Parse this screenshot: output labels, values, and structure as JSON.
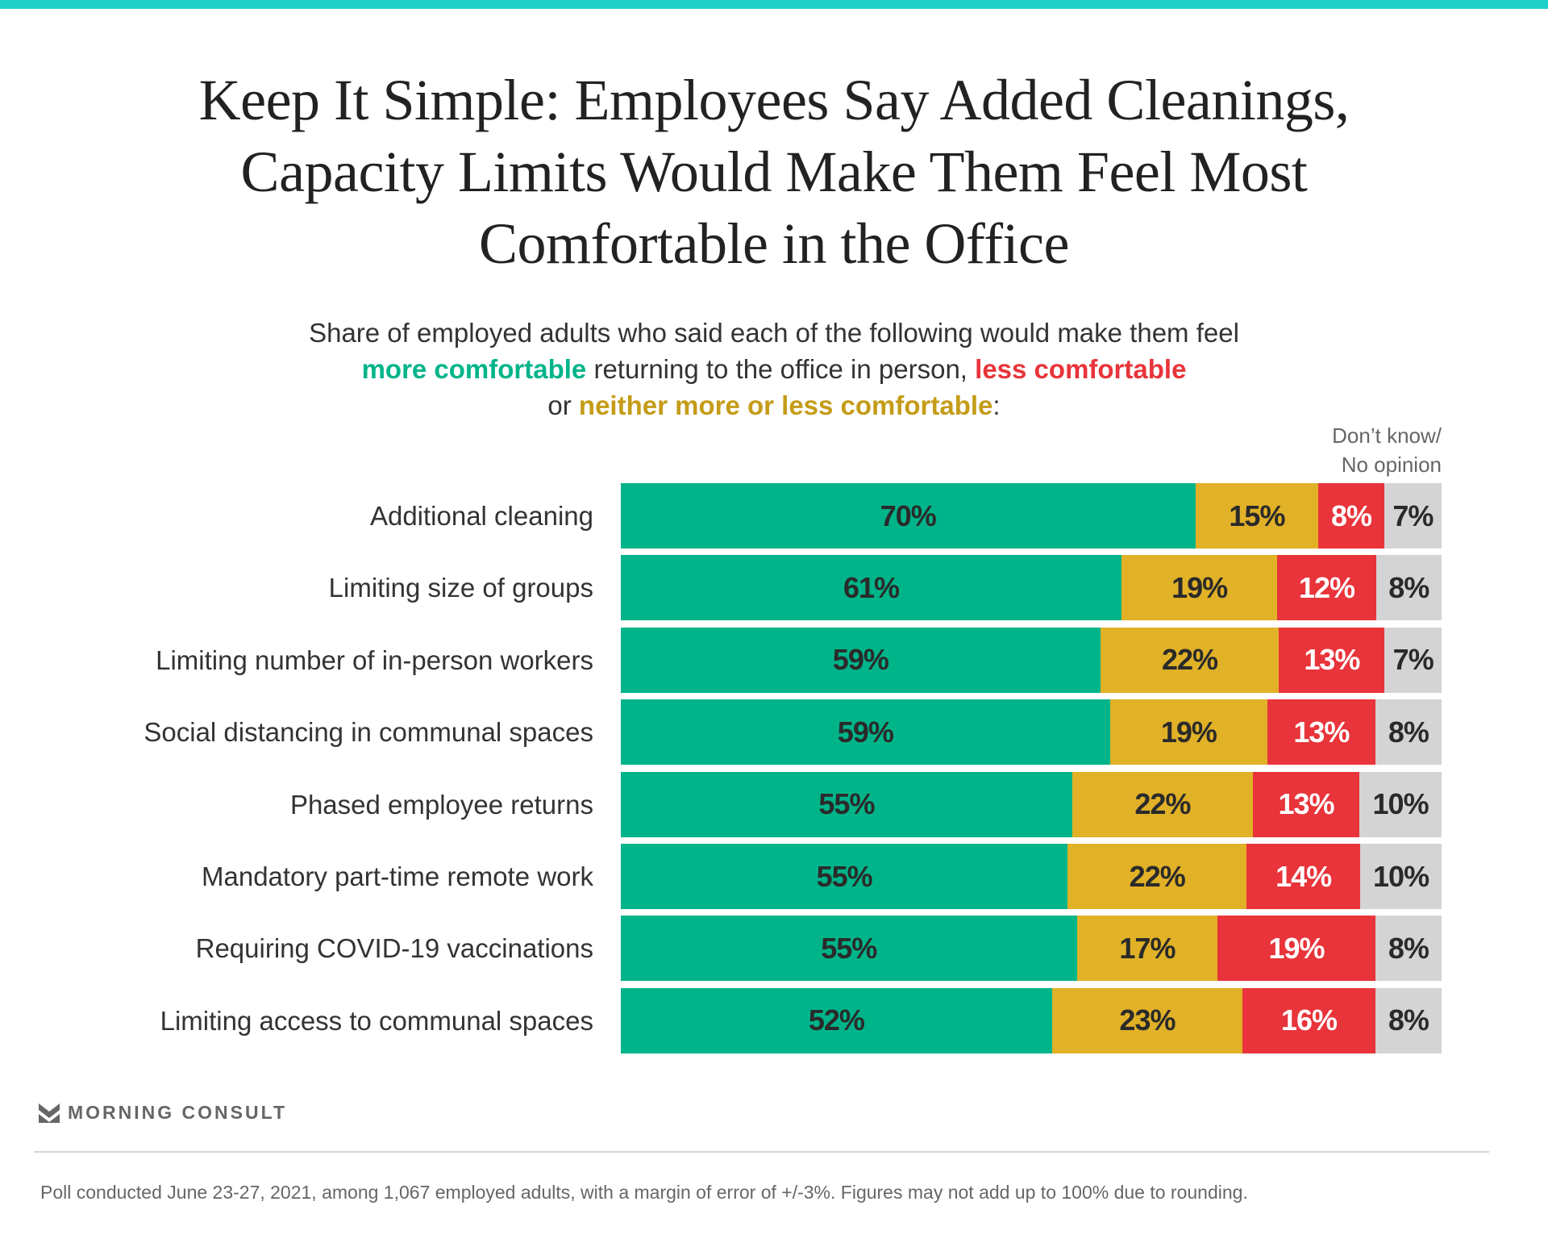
{
  "title_lines": [
    "Keep It Simple: Employees Say Added Cleanings,",
    "Capacity Limits Would Make Them Feel Most",
    "Comfortable in the Office"
  ],
  "subtitle": {
    "line1": "Share of employed adults who said each of the following would make them feel",
    "more": "more comfortable",
    "mid": " returning to the office in person, ",
    "less": "less comfortable",
    "or": "or ",
    "neither": "neither more or less comfortable",
    "end": ":"
  },
  "dont_know_header": [
    "Don’t know/",
    "No opinion"
  ],
  "chart_data": {
    "type": "bar",
    "orientation": "horizontal-stacked-100",
    "categories": [
      "Additional cleaning",
      "Limiting size of groups",
      "Limiting number of in-person workers",
      "Social distancing in communal spaces",
      "Phased employee returns",
      "Mandatory part-time remote work",
      "Requiring COVID-19 vaccinations",
      "Limiting access to communal spaces"
    ],
    "series": [
      {
        "name": "More comfortable",
        "color": "#00b48a",
        "text_color": "#2a2a2a",
        "values": [
          70,
          61,
          59,
          59,
          55,
          55,
          55,
          52
        ]
      },
      {
        "name": "Neither more or less comfortable",
        "color": "#e1b127",
        "text_color": "#2a2a2a",
        "values": [
          15,
          19,
          22,
          19,
          22,
          22,
          17,
          23
        ]
      },
      {
        "name": "Less comfortable",
        "color": "#e8343a",
        "text_color": "#ffffff",
        "values": [
          8,
          12,
          13,
          13,
          13,
          14,
          19,
          16
        ]
      },
      {
        "name": "Don't know/No opinion",
        "color": "#d4d4d4",
        "text_color": "#2a2a2a",
        "values": [
          7,
          8,
          7,
          8,
          10,
          10,
          8,
          8
        ]
      }
    ],
    "value_suffix": "%"
  },
  "brand": "MORNING CONSULT",
  "footer": "Poll conducted June 23-27, 2021, among 1,067 employed adults, with a margin of error of +/-3%. Figures may not add up to 100% due to rounding."
}
